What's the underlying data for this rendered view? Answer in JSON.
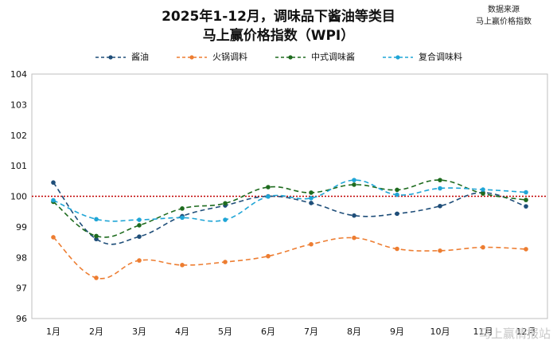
{
  "chart_data": {
    "type": "line",
    "title_line1": "2025年1-12月，调味品下酱油等类目",
    "title_line2": "马上赢价格指数（WPI）",
    "source_line1": "数据来源",
    "source_line2": "马上赢价格指数",
    "categories": [
      "1月",
      "2月",
      "3月",
      "4月",
      "5月",
      "6月",
      "7月",
      "8月",
      "9月",
      "10月",
      "11月",
      "12月"
    ],
    "ylim": [
      96,
      104
    ],
    "yticks": [
      "96",
      "97",
      "98",
      "99",
      "100",
      "101",
      "102",
      "103",
      "104"
    ],
    "reference_value": 100,
    "reference_color": "#c00000",
    "series": [
      {
        "name": "酱油",
        "color": "#1f4e79",
        "values": [
          100.45,
          98.6,
          98.68,
          99.35,
          99.7,
          100.0,
          99.78,
          99.37,
          99.43,
          99.68,
          100.12,
          99.67
        ]
      },
      {
        "name": "火锅调料",
        "color": "#ed7d31",
        "values": [
          98.66,
          97.33,
          97.9,
          97.75,
          97.85,
          98.04,
          98.43,
          98.64,
          98.28,
          98.22,
          98.33,
          98.27
        ]
      },
      {
        "name": "中式调味酱",
        "color": "#1e6b1e",
        "values": [
          99.82,
          98.7,
          99.05,
          99.6,
          99.77,
          100.3,
          100.12,
          100.38,
          100.21,
          100.53,
          100.09,
          99.88
        ]
      },
      {
        "name": "复合调味料",
        "color": "#1fa5d6",
        "values": [
          99.87,
          99.25,
          99.23,
          99.3,
          99.23,
          99.99,
          99.94,
          100.53,
          100.05,
          100.26,
          100.22,
          100.13
        ]
      }
    ],
    "watermark": "马上赢情报站"
  }
}
